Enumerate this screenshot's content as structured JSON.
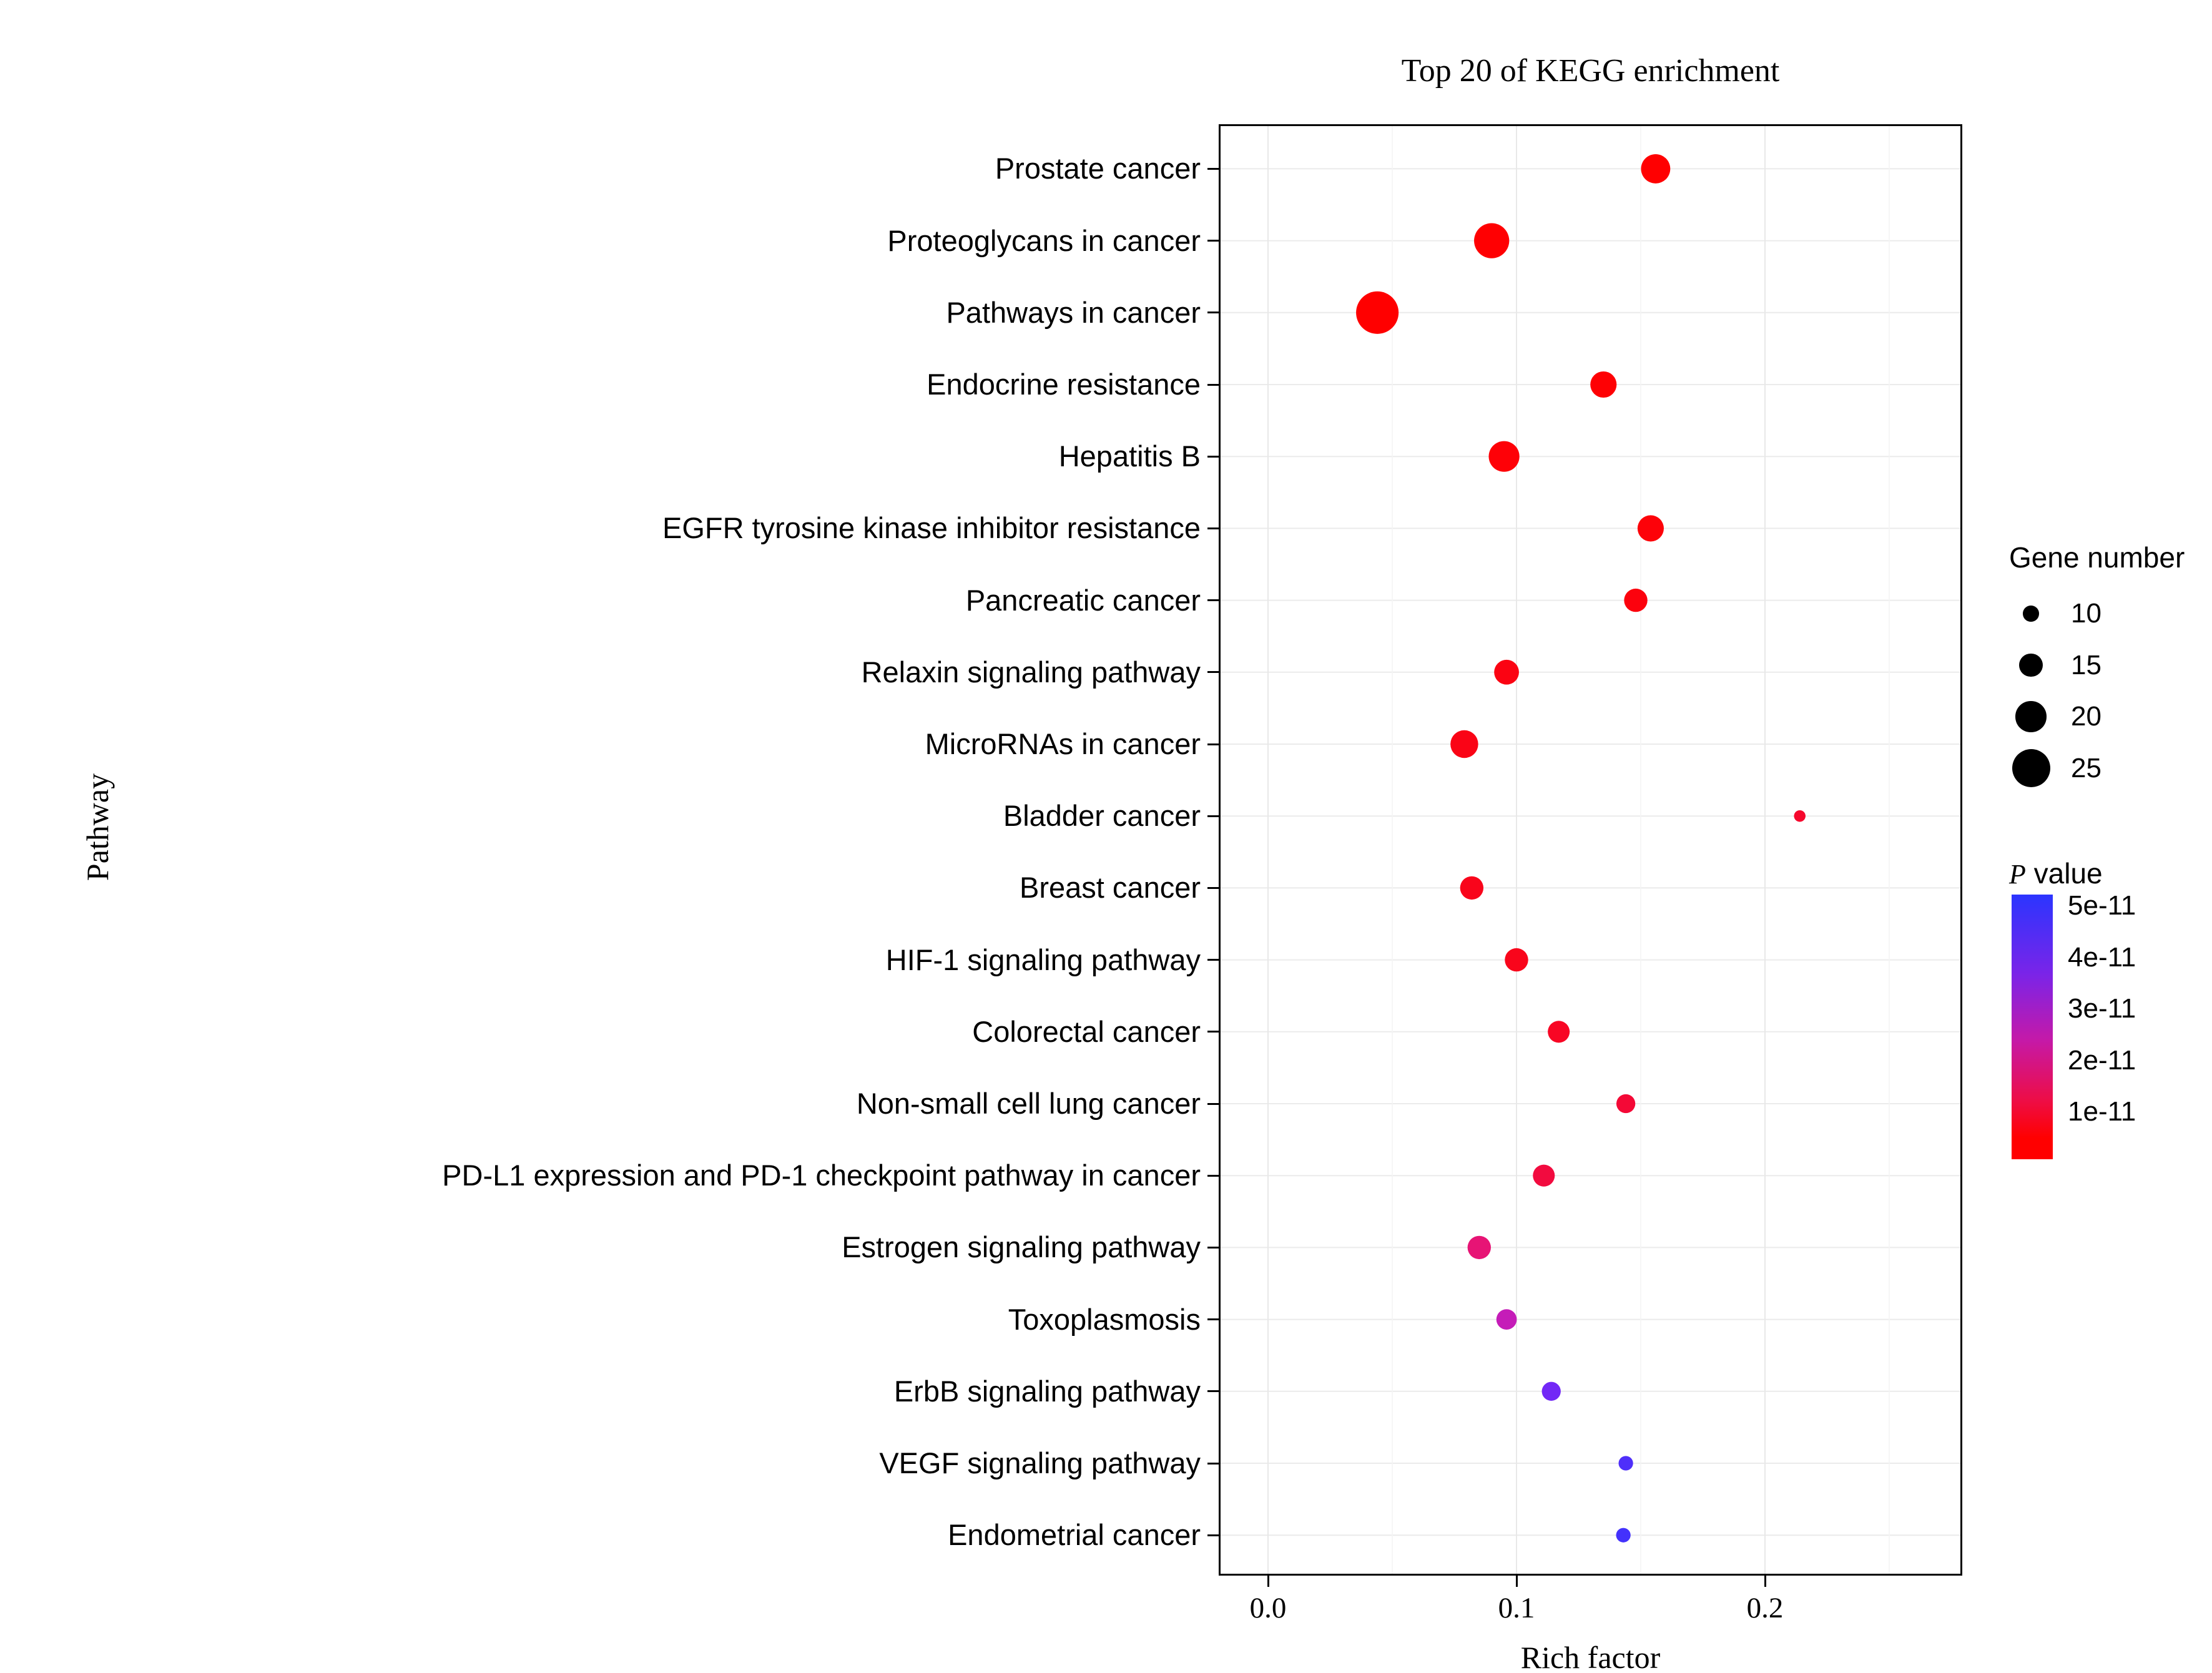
{
  "chart_data": {
    "type": "scatter",
    "title": "Top 20 of KEGG enrichment",
    "xlabel": "Rich factor",
    "ylabel": "Pathway",
    "xlim": [
      -0.02,
      0.28
    ],
    "x_ticks": [
      0.0,
      0.1,
      0.2
    ],
    "x_tick_labels": [
      "0.0",
      "0.1",
      "0.2"
    ],
    "x_minor_ticks": [
      0.05,
      0.15,
      0.25
    ],
    "grid": true,
    "legend_position": "right",
    "points": [
      {
        "pathway": "Prostate cancer",
        "rich_factor": 0.156,
        "gene_number": 19,
        "p_value": 1e-13
      },
      {
        "pathway": "Proteoglycans in cancer",
        "rich_factor": 0.09,
        "gene_number": 23,
        "p_value": 2e-13
      },
      {
        "pathway": "Pathways in cancer",
        "rich_factor": 0.044,
        "gene_number": 28,
        "p_value": 1e-14
      },
      {
        "pathway": "Endocrine resistance",
        "rich_factor": 0.135,
        "gene_number": 17,
        "p_value": 5e-13
      },
      {
        "pathway": "Hepatitis B",
        "rich_factor": 0.095,
        "gene_number": 20,
        "p_value": 8e-13
      },
      {
        "pathway": "EGFR tyrosine kinase inhibitor resistance",
        "rich_factor": 0.154,
        "gene_number": 17,
        "p_value": 1e-12
      },
      {
        "pathway": "Pancreatic cancer",
        "rich_factor": 0.148,
        "gene_number": 15,
        "p_value": 1.5e-12
      },
      {
        "pathway": "Relaxin signaling pathway",
        "rich_factor": 0.096,
        "gene_number": 16,
        "p_value": 2e-12
      },
      {
        "pathway": "MicroRNAs in cancer",
        "rich_factor": 0.079,
        "gene_number": 18,
        "p_value": 2.5e-12
      },
      {
        "pathway": "Bladder cancer",
        "rich_factor": 0.214,
        "gene_number": 7,
        "p_value": 5e-12
      },
      {
        "pathway": "Breast cancer",
        "rich_factor": 0.082,
        "gene_number": 15,
        "p_value": 3e-12
      },
      {
        "pathway": "HIF-1 signaling pathway",
        "rich_factor": 0.1,
        "gene_number": 15,
        "p_value": 3e-12
      },
      {
        "pathway": "Colorectal cancer",
        "rich_factor": 0.117,
        "gene_number": 14,
        "p_value": 4e-12
      },
      {
        "pathway": "Non-small cell lung cancer",
        "rich_factor": 0.144,
        "gene_number": 12,
        "p_value": 6e-12
      },
      {
        "pathway": "PD-L1 expression and PD-1 checkpoint pathway in cancer",
        "rich_factor": 0.111,
        "gene_number": 14,
        "p_value": 7e-12
      },
      {
        "pathway": "Estrogen signaling pathway",
        "rich_factor": 0.085,
        "gene_number": 15,
        "p_value": 1.3e-11
      },
      {
        "pathway": "Toxoplasmosis",
        "rich_factor": 0.096,
        "gene_number": 13,
        "p_value": 2.3e-11
      },
      {
        "pathway": "ErbB signaling pathway",
        "rich_factor": 0.114,
        "gene_number": 12,
        "p_value": 4e-11
      },
      {
        "pathway": "VEGF signaling pathway",
        "rich_factor": 0.144,
        "gene_number": 9,
        "p_value": 4.6e-11
      },
      {
        "pathway": "Endometrial cancer",
        "rich_factor": 0.143,
        "gene_number": 9,
        "p_value": 4.8e-11
      }
    ]
  },
  "legend": {
    "size": {
      "title": "Gene number",
      "items": [
        10,
        15,
        20,
        25
      ]
    },
    "color": {
      "title_p": "P",
      "title_value": " value",
      "labels": [
        "5e-11",
        "4e-11",
        "3e-11",
        "2e-11",
        "1e-11"
      ],
      "scale_max": 5.2e-11,
      "high_color": "#2b35ff",
      "low_color": "#ff0000"
    }
  }
}
